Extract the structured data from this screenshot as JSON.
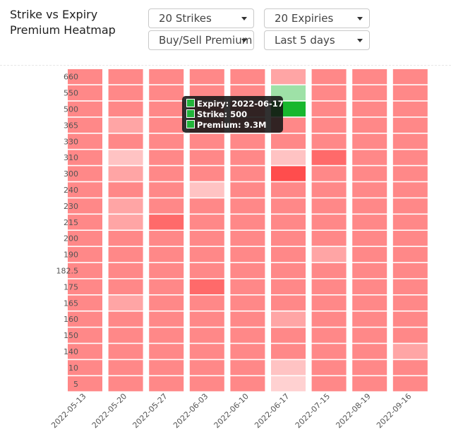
{
  "header": {
    "title": "Strike vs Expiry\nPremium Heatmap",
    "strikes_dropdown": "20 Strikes",
    "expiries_dropdown": "20 Expiries",
    "premium_dropdown": "Buy/Sell Premium",
    "range_dropdown": "Last 5 days"
  },
  "tooltip": {
    "expiry": "Expiry: 2022-06-17",
    "strike": "Strike: 500",
    "premium": "Premium: 9.3M"
  },
  "chart_data": {
    "type": "heatmap",
    "title": "Strike vs Expiry Premium Heatmap",
    "x_categories": [
      "2022-05-13",
      "2022-05-20",
      "2022-05-27",
      "2022-06-03",
      "2022-06-10",
      "2022-06-17",
      "2022-07-15",
      "2022-08-19",
      "2022-09-16"
    ],
    "y_categories": [
      "660",
      "550",
      "500",
      "365",
      "330",
      "310",
      "300",
      "240",
      "230",
      "215",
      "200",
      "190",
      "182.5",
      "175",
      "165",
      "160",
      "150",
      "140",
      "10",
      "5"
    ],
    "values": [
      [
        -3,
        -3,
        -3,
        -3,
        -3,
        -2,
        -3,
        -3,
        -3
      ],
      [
        -3,
        -3,
        -3,
        -3,
        -3,
        1,
        -3,
        -3,
        -3
      ],
      [
        -3,
        -3,
        -3,
        -3,
        -3,
        9.3,
        -3,
        -3,
        -3
      ],
      [
        -3,
        -2,
        -3,
        -3,
        -3,
        -3,
        -3,
        -3,
        -3
      ],
      [
        -3,
        -3,
        -3,
        -3,
        -3,
        -3,
        -3,
        -3,
        -3
      ],
      [
        -3,
        -1,
        -3,
        -3,
        -3,
        -1,
        -4,
        -3,
        -3
      ],
      [
        -3,
        -2,
        -3,
        -3,
        -3,
        -5,
        -3,
        -3,
        -3
      ],
      [
        -3,
        -3,
        -3,
        -1,
        -3,
        -3,
        -3,
        -3,
        -3
      ],
      [
        -3,
        -2,
        -3,
        -3,
        -3,
        -3,
        -3,
        -3,
        -3
      ],
      [
        -3,
        -2,
        -4,
        -3,
        -3,
        -3,
        -3,
        -3,
        -3
      ],
      [
        -3,
        -3,
        -3,
        -3,
        -3,
        -3,
        -3,
        -3,
        -3
      ],
      [
        -3,
        -3,
        -3,
        -3,
        -3,
        -3,
        -2,
        -3,
        -3
      ],
      [
        -3,
        -3,
        -3,
        -3,
        -3,
        -3,
        -3,
        -3,
        -3
      ],
      [
        -3,
        -3,
        -3,
        -4,
        -3,
        -3,
        -3,
        -3,
        -3
      ],
      [
        -3,
        -2,
        -3,
        -3,
        -3,
        -3,
        -3,
        -3,
        -3
      ],
      [
        -3,
        -3,
        -3,
        -3,
        -3,
        -2,
        -3,
        -3,
        -3
      ],
      [
        -3,
        -3,
        -3,
        -3,
        -3,
        -3,
        -3,
        -3,
        -3
      ],
      [
        -3,
        -3,
        -3,
        -3,
        -3,
        -3,
        -3,
        -3,
        -2
      ],
      [
        -3,
        -3,
        -3,
        -3,
        -3,
        -1,
        -3,
        -3,
        -3
      ],
      [
        -3,
        -3,
        -3,
        -3,
        -3,
        -0.5,
        -3,
        -3,
        -3
      ]
    ],
    "highlight": {
      "x": "2022-06-17",
      "y": "500",
      "value": 9.3
    },
    "colors": {
      "negative": "#ff4d4d",
      "positive": "#18b72e",
      "background": "#ffffff"
    },
    "legend": "none",
    "grid": false
  }
}
